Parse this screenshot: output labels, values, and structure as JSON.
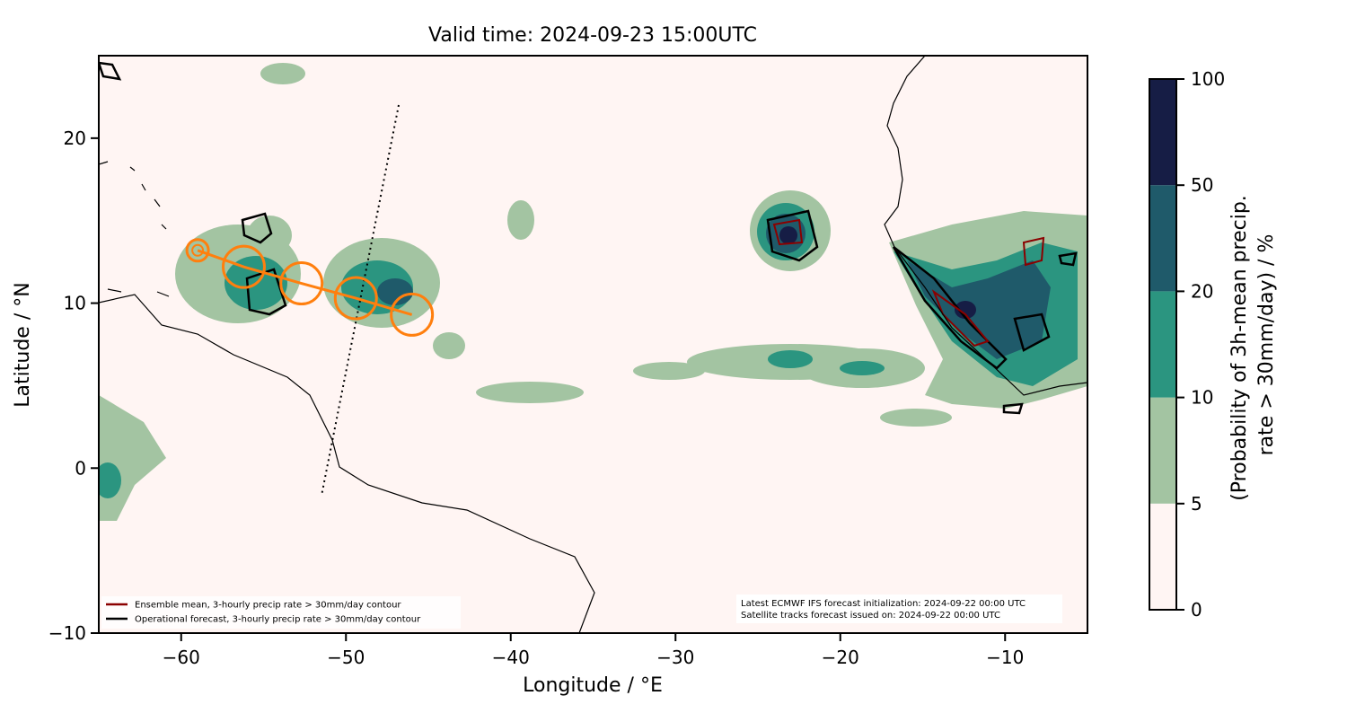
{
  "chart_data": {
    "type": "map",
    "title": "Valid time: 2024-09-23 15:00UTC",
    "xlabel": "Longitude / °E",
    "ylabel": "Latitude / °N",
    "xlim": [
      -65,
      -5
    ],
    "ylim": [
      -10,
      25
    ],
    "xticks": [
      {
        "value": -60,
        "label": "−60"
      },
      {
        "value": -50,
        "label": "−50"
      },
      {
        "value": -40,
        "label": "−40"
      },
      {
        "value": -30,
        "label": "−30"
      },
      {
        "value": -20,
        "label": "−20"
      },
      {
        "value": -10,
        "label": "−10"
      }
    ],
    "yticks": [
      {
        "value": -10,
        "label": "−10"
      },
      0,
      10,
      20
    ],
    "colorbar": {
      "label": [
        "(Probability of 3h-mean precip.",
        "rate > 30mm/day) / %"
      ],
      "levels": [
        0,
        5,
        10,
        20,
        50,
        100
      ],
      "colors": [
        "#fff5f3",
        "#a3c4a2",
        "#2b9580",
        "#1f5a6a",
        "#161d45"
      ]
    },
    "legend": [
      {
        "name": "Ensemble mean, 3-hourly precip rate > 30mm/day contour",
        "color": "#8b0000"
      },
      {
        "name": "Operational forecast, 3-hourly precip rate > 30mm/day contour",
        "color": "#000000"
      }
    ],
    "legend_loc": "lower left",
    "track": {
      "color": "#ff7f0e",
      "x": [
        -59,
        -56.2,
        -52.7,
        -49.4,
        -46
      ],
      "y": [
        13.2,
        12.2,
        11.2,
        10.3,
        9.3
      ]
    },
    "notes": [
      "Latest ECMWF IFS forecast initialization: 2024-09-22 00:00 UTC",
      "Satellite tracks forecast issued on: 2024-09-22 00:00 UTC"
    ]
  }
}
